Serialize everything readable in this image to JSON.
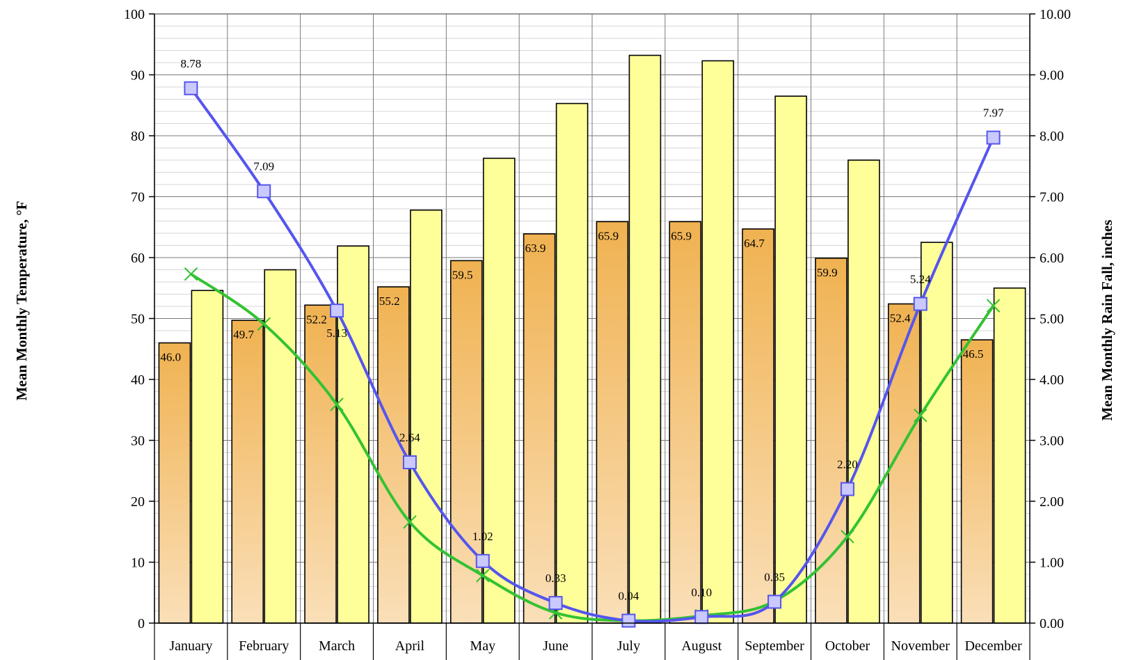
{
  "chart_data": {
    "type": "bar",
    "categories": [
      "January",
      "February",
      "March",
      "April",
      "May",
      "June",
      "July",
      "August",
      "September",
      "October",
      "November",
      "December"
    ],
    "ylabel": "Mean Monthly Temperature, °F",
    "y2label": "Mean Monthly Rain Fall, inches",
    "ylim": [
      0,
      100
    ],
    "y2lim": [
      0,
      10
    ],
    "yticks": [
      "0",
      "10",
      "20",
      "30",
      "40",
      "50",
      "60",
      "70",
      "80",
      "90",
      "100"
    ],
    "y2ticks": [
      "0.00",
      "1.00",
      "2.00",
      "3.00",
      "4.00",
      "5.00",
      "6.00",
      "7.00",
      "8.00",
      "9.00",
      "10.00"
    ],
    "grid": true,
    "legend": "none",
    "series": [
      {
        "type": "bar",
        "axis": "left",
        "color": "#f3b75c",
        "values": [
          46.0,
          49.7,
          52.2,
          55.2,
          59.5,
          63.9,
          65.9,
          65.9,
          64.7,
          59.9,
          52.4,
          46.5
        ],
        "labels": [
          "46.0",
          "49.7",
          "52.2",
          "55.2",
          "59.5",
          "63.9",
          "65.9",
          "65.9",
          "64.7",
          "59.9",
          "52.4",
          "46.5"
        ]
      },
      {
        "type": "bar",
        "axis": "left",
        "color": "#ffff99",
        "values": [
          54.6,
          58.0,
          61.9,
          67.8,
          76.3,
          85.3,
          93.2,
          92.3,
          86.5,
          76.0,
          62.5,
          55.0
        ]
      },
      {
        "type": "line",
        "axis": "right",
        "color": "#5555ee",
        "marker": "square",
        "values": [
          8.78,
          7.09,
          5.13,
          2.64,
          1.02,
          0.33,
          0.04,
          0.1,
          0.35,
          2.2,
          5.24,
          7.97
        ],
        "labels": [
          "8.78",
          "7.09",
          "5.13",
          "2.64",
          "1.02",
          "0.33",
          "0.04",
          "0.10",
          "0.35",
          "2.20",
          "5.24",
          "7.97"
        ]
      },
      {
        "type": "line",
        "axis": "right",
        "color": "#33c233",
        "marker": "x",
        "values": [
          5.73,
          4.91,
          3.59,
          1.66,
          0.78,
          0.17,
          0.04,
          0.12,
          0.36,
          1.42,
          3.41,
          5.21
        ]
      }
    ]
  }
}
